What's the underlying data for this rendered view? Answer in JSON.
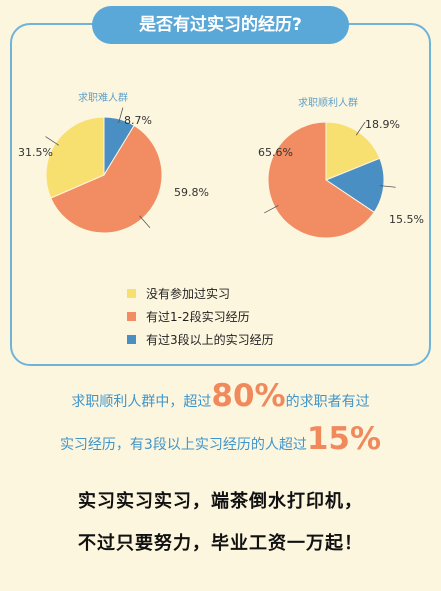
{
  "title": "是否有过实习的经历?",
  "colors": {
    "none": "#f8e070",
    "one_two": "#f28c62",
    "three_plus": "#4a8fc3",
    "accent": "#5aa8d8",
    "highlight": "#f08a5d"
  },
  "chart_data": [
    {
      "type": "pie",
      "title": "求职难人群",
      "slices": [
        {
          "label": "没有参加过实习",
          "value": 31.5,
          "display": "31.5%"
        },
        {
          "label": "有过1-2段实习经历",
          "value": 59.8,
          "display": "59.8%"
        },
        {
          "label": "有过3段以上的实习经历",
          "value": 8.7,
          "display": "8.7%"
        }
      ]
    },
    {
      "type": "pie",
      "title": "求职顺利人群",
      "slices": [
        {
          "label": "没有参加过实习",
          "value": 18.9,
          "display": "18.9%"
        },
        {
          "label": "有过1-2段实习经历",
          "value": 65.6,
          "display": "65.6%"
        },
        {
          "label": "有过3段以上的实习经历",
          "value": 15.5,
          "display": "15.5%"
        }
      ]
    }
  ],
  "legend": [
    {
      "label": "没有参加过实习"
    },
    {
      "label": "有过1-2段实习经历"
    },
    {
      "label": "有过3段以上的实习经历"
    }
  ],
  "stats": {
    "line1_pre": "求职顺利人群中，超过",
    "line1_big": "80%",
    "line1_post": "的求职者有过",
    "line2_pre": "实习经历，有3段以上实习经历的人超过",
    "line2_big": "15%"
  },
  "footer": {
    "line1": "实习实习实习，端茶倒水打印机，",
    "line2": "不过只要努力，毕业工资一万起！"
  }
}
